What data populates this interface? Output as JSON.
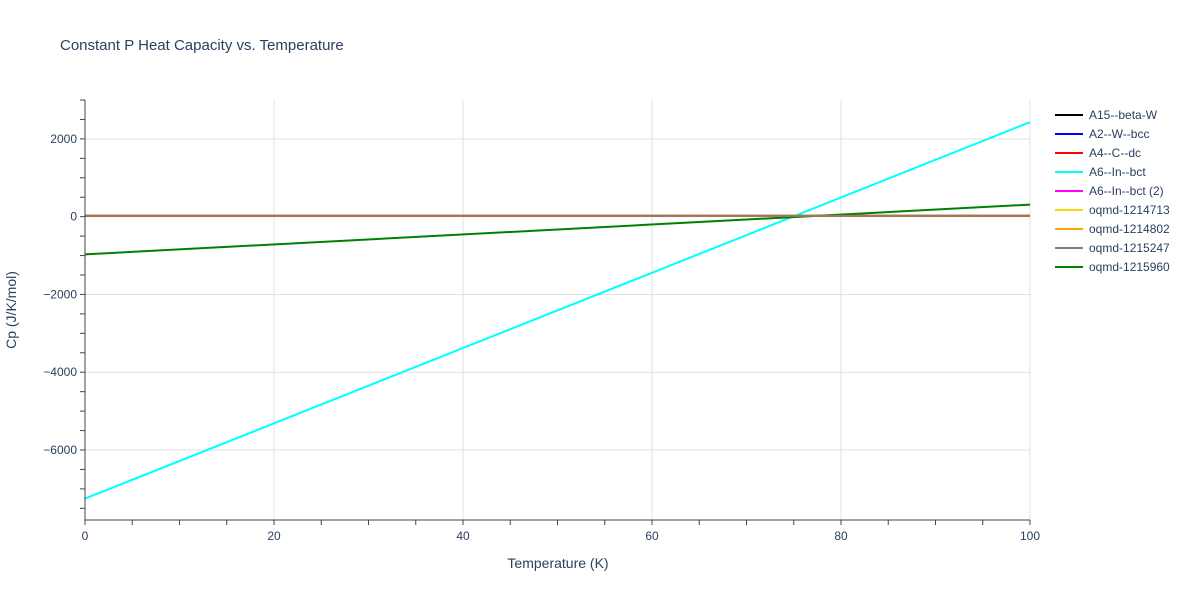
{
  "chart_data": {
    "type": "line",
    "title": "Constant P Heat Capacity vs. Temperature",
    "xlabel": "Temperature (K)",
    "ylabel": "Cp (J/K/mol)",
    "xlim": [
      0,
      100
    ],
    "ylim": [
      -7800,
      3000
    ],
    "x_ticks": [
      0,
      20,
      40,
      60,
      80,
      100
    ],
    "x_tick_labels": [
      "0",
      "20",
      "40",
      "60",
      "80",
      "100"
    ],
    "y_ticks": [
      -6000,
      -4000,
      -2000,
      0,
      2000
    ],
    "y_tick_labels": [
      "−6000",
      "−4000",
      "−2000",
      "0",
      "2000"
    ],
    "grid": true,
    "legend_position": "right",
    "series": [
      {
        "name": "A15--beta-W",
        "color": "#000000",
        "x": [
          0,
          100
        ],
        "y": [
          20,
          20
        ]
      },
      {
        "name": "A2--W--bcc",
        "color": "#0000ff",
        "x": [
          0,
          100
        ],
        "y": [
          20,
          20
        ]
      },
      {
        "name": "A4--C--dc",
        "color": "#ff0000",
        "x": [
          0,
          100
        ],
        "y": [
          20,
          20
        ]
      },
      {
        "name": "A6--In--bct",
        "color": "#00ffff",
        "x": [
          0,
          100
        ],
        "y": [
          -7250,
          2430
        ]
      },
      {
        "name": "A6--In--bct (2)",
        "color": "#ff00ff",
        "x": [
          0,
          100
        ],
        "y": [
          20,
          20
        ]
      },
      {
        "name": "oqmd-1214713",
        "color": "#ffd700",
        "x": [
          0,
          100
        ],
        "y": [
          20,
          20
        ]
      },
      {
        "name": "oqmd-1214802",
        "color": "#ffa500",
        "x": [
          0,
          100
        ],
        "y": [
          20,
          20
        ]
      },
      {
        "name": "oqmd-1215247",
        "color": "#808080",
        "x": [
          0,
          100
        ],
        "y": [
          20,
          20
        ]
      },
      {
        "name": "oqmd-1215960",
        "color": "#008000",
        "x": [
          0,
          100
        ],
        "y": [
          -970,
          310
        ]
      },
      {
        "name": "",
        "color": "#a0785a",
        "x": [
          0,
          100
        ],
        "y": [
          20,
          20
        ]
      }
    ]
  }
}
